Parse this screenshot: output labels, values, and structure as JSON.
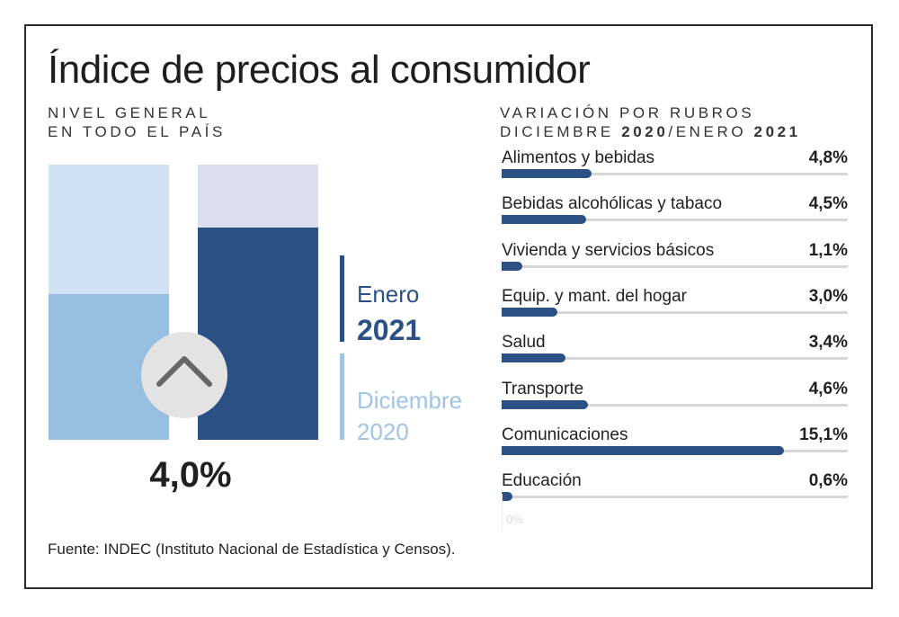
{
  "title": "Índice de precios al consumidor",
  "left": {
    "subtitle_line1": "NIVEL GENERAL",
    "subtitle_line2": "EN TODO EL PAÍS",
    "value": "4,0%",
    "legend": {
      "enero_label": "Enero",
      "enero_year": "2021",
      "dic_label": "Diciembre",
      "dic_year": "2020"
    },
    "colors": {
      "dec_bg": "#cfe1f2",
      "dec_fill": "#97bfe2",
      "jan_bg": "#dcdfee",
      "jan_fill": "#2b5084",
      "circle": "#e3e3e3",
      "chevron": "#666666"
    },
    "icon": "chevron-up-icon"
  },
  "right": {
    "subtitle_line1": "VARIACIÓN POR RUBROS",
    "subtitle_line2_a": "DICIEMBRE ",
    "subtitle_line2_b": "2020",
    "subtitle_line2_c": "/ENERO ",
    "subtitle_line2_d": "2021",
    "zero_label": "0%"
  },
  "chart_data": [
    {
      "type": "bar",
      "categories": [
        "Diciembre 2020",
        "Enero 2021"
      ],
      "values": [
        0.53,
        0.77
      ],
      "value_label": "4,0%",
      "note": "relative column heights"
    },
    {
      "type": "bar",
      "orientation": "horizontal",
      "categories": [
        "Alimentos y bebidas",
        "Bebidas alcohólicas y tabaco",
        "Vivienda y servicios básicos",
        "Equip. y mant. del hogar",
        "Salud",
        "Transporte",
        "Comunicaciones",
        "Educación"
      ],
      "values": [
        4.8,
        4.5,
        1.1,
        3.0,
        3.4,
        4.6,
        15.1,
        0.6
      ],
      "labels": [
        "4,8%",
        "4,5%",
        "1,1%",
        "3,0%",
        "3,4%",
        "4,6%",
        "15,1%",
        "0,6%"
      ],
      "xlim": [
        0,
        18.5
      ],
      "color": "#2b5084"
    }
  ],
  "source": "Fuente: INDEC (Instituto Nacional de Estadística y Censos)."
}
